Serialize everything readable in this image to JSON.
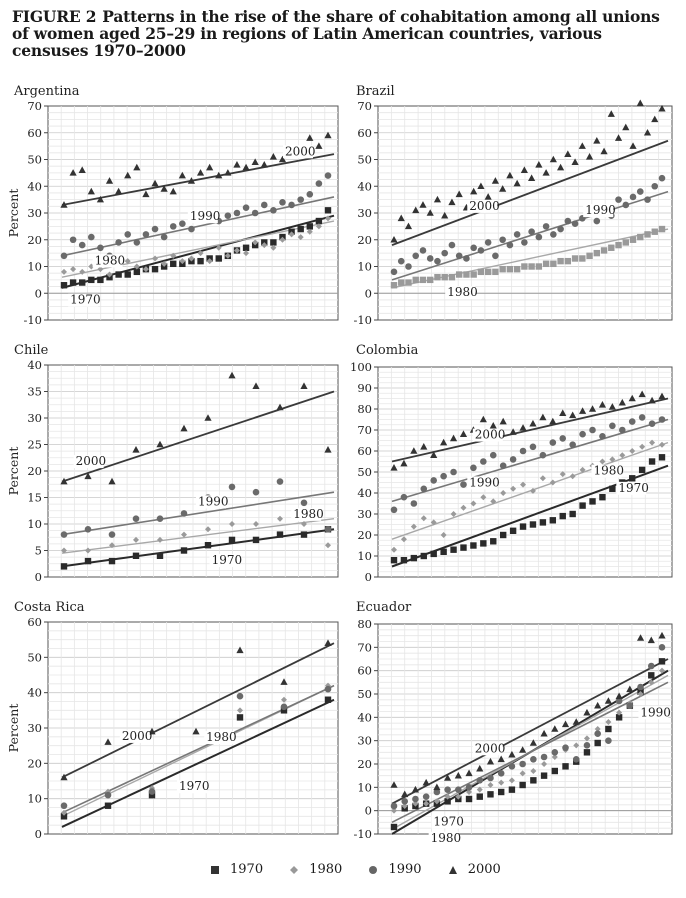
{
  "figure": {
    "label": "FIGURE 2",
    "title": "Patterns in the rise of the share of cohabitation among all unions of women aged 25–29 in regions of Latin American countries, various censuses 1970–2000"
  },
  "legend": [
    "1970",
    "1980",
    "1990",
    "2000"
  ],
  "chart_data": [
    {
      "type": "scatter",
      "title": "Argentina",
      "ylabel": "Percent",
      "ylim": [
        -10,
        70
      ],
      "yticks": [
        -10,
        0,
        10,
        20,
        30,
        40,
        50,
        60,
        70
      ],
      "grid": true,
      "annotations": [
        {
          "text": "2000",
          "series": "2000"
        },
        {
          "text": "1990",
          "series": "1990"
        },
        {
          "text": "1980",
          "series": "1980"
        },
        {
          "text": "1970",
          "series": "1970"
        }
      ],
      "series": [
        {
          "name": "1970",
          "marker": "square",
          "trend": [
            2,
            29
          ],
          "values": [
            3,
            4,
            4,
            5,
            5,
            6,
            7,
            7,
            8,
            9,
            9,
            10,
            11,
            11,
            12,
            12,
            13,
            13,
            14,
            16,
            17,
            18,
            19,
            19,
            21,
            23,
            24,
            25,
            27,
            31
          ]
        },
        {
          "name": "1980",
          "marker": "diamond",
          "trend": [
            6,
            27
          ],
          "values": [
            8,
            9,
            8,
            10,
            9,
            7,
            11,
            12,
            10,
            9,
            13,
            11,
            14,
            12,
            13,
            15,
            12,
            17,
            14,
            16,
            15,
            19,
            18,
            17,
            20,
            22,
            21,
            23,
            25,
            28
          ]
        },
        {
          "name": "1990",
          "marker": "circle",
          "trend": [
            14,
            36
          ],
          "values": [
            14,
            20,
            18,
            21,
            17,
            14,
            19,
            22,
            19,
            22,
            24,
            21,
            25,
            26,
            24,
            28,
            29,
            27,
            29,
            30,
            32,
            30,
            33,
            31,
            34,
            33,
            35,
            37,
            41,
            44
          ]
        },
        {
          "name": "2000",
          "marker": "triangle",
          "trend": [
            33,
            52
          ],
          "values": [
            33,
            45,
            46,
            38,
            35,
            42,
            38,
            44,
            47,
            37,
            41,
            39,
            38,
            44,
            42,
            45,
            47,
            44,
            45,
            48,
            47,
            49,
            48,
            51,
            50,
            52,
            53,
            58,
            55,
            59
          ]
        }
      ]
    },
    {
      "type": "scatter",
      "title": "Brazil",
      "ylabel": "",
      "ylim": [
        -10,
        70
      ],
      "yticks": [
        -10,
        0,
        10,
        20,
        30,
        40,
        50,
        60,
        70
      ],
      "grid": true,
      "annotations": [
        {
          "text": "2000",
          "series": "2000"
        },
        {
          "text": "1990",
          "series": "1990"
        },
        {
          "text": "1980",
          "series": "1980"
        }
      ],
      "series": [
        {
          "name": "1980",
          "marker": "square",
          "trend": [
            2,
            24
          ],
          "values": [
            3,
            4,
            4,
            5,
            5,
            5,
            6,
            6,
            6,
            7,
            7,
            7,
            8,
            8,
            8,
            9,
            9,
            9,
            10,
            10,
            10,
            11,
            11,
            12,
            12,
            13,
            13,
            14,
            15,
            16,
            17,
            18,
            19,
            20,
            21,
            22,
            23,
            24
          ]
        },
        {
          "name": "1990",
          "marker": "circle",
          "trend": [
            5,
            38
          ],
          "values": [
            8,
            12,
            10,
            14,
            16,
            13,
            12,
            15,
            18,
            14,
            13,
            17,
            16,
            19,
            14,
            20,
            18,
            22,
            19,
            23,
            21,
            25,
            22,
            24,
            27,
            26,
            28,
            30,
            27,
            32,
            29,
            35,
            33,
            36,
            38,
            35,
            40,
            43
          ]
        },
        {
          "name": "2000",
          "marker": "triangle",
          "trend": [
            18,
            57
          ],
          "values": [
            20,
            28,
            25,
            31,
            33,
            30,
            35,
            29,
            34,
            37,
            32,
            38,
            40,
            36,
            42,
            39,
            44,
            41,
            46,
            43,
            48,
            45,
            50,
            47,
            52,
            49,
            55,
            51,
            57,
            53,
            67,
            58,
            62,
            55,
            71,
            60,
            65,
            69
          ]
        }
      ]
    },
    {
      "type": "scatter",
      "title": "Chile",
      "ylabel": "Percent",
      "ylim": [
        0,
        40
      ],
      "yticks": [
        0,
        5,
        10,
        15,
        20,
        25,
        30,
        35,
        40
      ],
      "grid": true,
      "annotations": [
        {
          "text": "2000",
          "series": "2000"
        },
        {
          "text": "1990",
          "series": "1990"
        },
        {
          "text": "1980",
          "series": "1980"
        },
        {
          "text": "1970",
          "series": "1970"
        }
      ],
      "series": [
        {
          "name": "1970",
          "marker": "square",
          "trend": [
            2,
            9
          ],
          "values": [
            2,
            3,
            3,
            4,
            4,
            5,
            6,
            7,
            7,
            8,
            8,
            9
          ]
        },
        {
          "name": "1980",
          "marker": "diamond",
          "trend": [
            4.5,
            11
          ],
          "values": [
            5,
            5,
            6,
            7,
            7,
            8,
            9,
            10,
            10,
            11,
            10,
            6
          ]
        },
        {
          "name": "1990",
          "marker": "circle",
          "trend": [
            8,
            16
          ],
          "values": [
            8,
            9,
            8,
            11,
            11,
            12,
            15,
            17,
            16,
            18,
            14,
            9
          ]
        },
        {
          "name": "2000",
          "marker": "triangle",
          "trend": [
            18,
            35
          ],
          "values": [
            18,
            19,
            18,
            24,
            25,
            28,
            30,
            38,
            36,
            32,
            36,
            24
          ]
        }
      ]
    },
    {
      "type": "scatter",
      "title": "Colombia",
      "ylabel": "",
      "ylim": [
        0,
        100
      ],
      "yticks": [
        0,
        10,
        20,
        30,
        40,
        50,
        60,
        70,
        80,
        90,
        100
      ],
      "grid": true,
      "annotations": [
        {
          "text": "2000",
          "series": "2000"
        },
        {
          "text": "1990",
          "series": "1990"
        },
        {
          "text": "1980",
          "series": "1980"
        },
        {
          "text": "1970",
          "series": "1970"
        }
      ],
      "series": [
        {
          "name": "1970",
          "marker": "square",
          "trend": [
            5,
            53
          ],
          "values": [
            8,
            8,
            9,
            10,
            11,
            12,
            13,
            14,
            15,
            16,
            17,
            20,
            22,
            24,
            25,
            26,
            27,
            29,
            30,
            34,
            36,
            38,
            42,
            45,
            47,
            51,
            55,
            57
          ]
        },
        {
          "name": "1980",
          "marker": "diamond",
          "trend": [
            18,
            64
          ],
          "values": [
            13,
            18,
            24,
            28,
            26,
            20,
            30,
            33,
            35,
            38,
            36,
            40,
            42,
            44,
            41,
            47,
            45,
            49,
            48,
            51,
            53,
            55,
            56,
            58,
            60,
            62,
            64,
            63
          ]
        },
        {
          "name": "1990",
          "marker": "circle",
          "trend": [
            36,
            75
          ],
          "values": [
            32,
            38,
            35,
            42,
            46,
            48,
            50,
            44,
            52,
            55,
            58,
            53,
            56,
            60,
            62,
            58,
            64,
            66,
            63,
            68,
            70,
            67,
            72,
            70,
            74,
            76,
            73,
            75
          ]
        },
        {
          "name": "2000",
          "marker": "triangle",
          "trend": [
            55,
            85
          ],
          "values": [
            52,
            54,
            60,
            62,
            58,
            64,
            66,
            68,
            70,
            75,
            72,
            74,
            69,
            71,
            73,
            76,
            74,
            78,
            77,
            79,
            80,
            82,
            81,
            83,
            85,
            87,
            84,
            86
          ]
        }
      ]
    },
    {
      "type": "scatter",
      "title": "Costa Rica",
      "ylabel": "Percent",
      "ylim": [
        0,
        60
      ],
      "yticks": [
        0,
        10,
        20,
        30,
        40,
        50,
        60
      ],
      "grid": true,
      "annotations": [
        {
          "text": "2000",
          "series": "2000"
        },
        {
          "text": "1980",
          "series": "1980"
        },
        {
          "text": "1970",
          "series": "1970"
        }
      ],
      "series": [
        {
          "name": "1970",
          "marker": "square",
          "trend": [
            2,
            38
          ],
          "values": [
            5,
            8,
            11,
            13,
            33,
            35,
            38
          ]
        },
        {
          "name": "1980",
          "marker": "diamond",
          "trend": [
            5,
            42
          ],
          "values": [
            6,
            12,
            13,
            14,
            35,
            38,
            42
          ]
        },
        {
          "name": "1990",
          "marker": "circle",
          "trend": [
            6,
            42
          ],
          "values": [
            8,
            11,
            12,
            14,
            39,
            36,
            41
          ]
        },
        {
          "name": "2000",
          "marker": "triangle",
          "trend": [
            16,
            54
          ],
          "values": [
            16,
            26,
            29,
            29,
            52,
            43,
            54
          ]
        }
      ]
    },
    {
      "type": "scatter",
      "title": "Ecuador",
      "ylabel": "",
      "ylim": [
        -10,
        80
      ],
      "yticks": [
        -10,
        0,
        10,
        20,
        30,
        40,
        50,
        60,
        70,
        80
      ],
      "grid": true,
      "annotations": [
        {
          "text": "2000",
          "series": "2000"
        },
        {
          "text": "1970",
          "series": "1970"
        },
        {
          "text": "1980",
          "series": "1980"
        },
        {
          "text": "1990",
          "series": "1990"
        }
      ],
      "series": [
        {
          "name": "1970",
          "marker": "square",
          "trend": [
            -10,
            60
          ],
          "values": [
            -7,
            1,
            2,
            3,
            3,
            4,
            5,
            5,
            6,
            7,
            8,
            9,
            11,
            13,
            15,
            17,
            19,
            21,
            25,
            29,
            35,
            40,
            45,
            51,
            58,
            64
          ]
        },
        {
          "name": "1980",
          "marker": "diamond",
          "trend": [
            -8,
            58
          ],
          "values": [
            0,
            2,
            3,
            3,
            4,
            6,
            6,
            8,
            9,
            11,
            12,
            13,
            16,
            17,
            20,
            23,
            26,
            28,
            31,
            35,
            38,
            42,
            46,
            50,
            55,
            60
          ]
        },
        {
          "name": "1990",
          "marker": "circle",
          "trend": [
            -5,
            55
          ],
          "values": [
            2,
            4,
            5,
            6,
            8,
            9,
            9,
            10,
            13,
            14,
            16,
            19,
            20,
            22,
            23,
            25,
            27,
            22,
            28,
            33,
            30,
            47,
            45,
            53,
            62,
            70
          ]
        },
        {
          "name": "2000",
          "marker": "triangle",
          "trend": [
            3,
            65
          ],
          "values": [
            11,
            7,
            9,
            12,
            10,
            14,
            15,
            16,
            18,
            21,
            22,
            24,
            26,
            29,
            33,
            35,
            37,
            38,
            42,
            45,
            47,
            49,
            52,
            74,
            73,
            75
          ]
        }
      ]
    }
  ]
}
